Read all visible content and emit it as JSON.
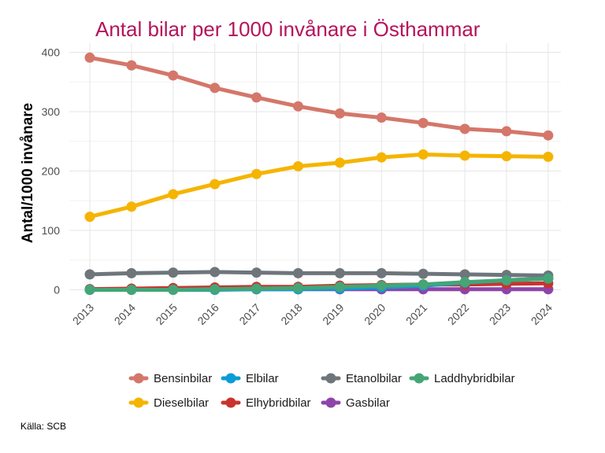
{
  "chart_data": {
    "type": "line",
    "title": "Antal bilar per 1000 invånare i Östhammar",
    "xlabel": "",
    "ylabel": "Antal/1000 invånare",
    "caption": "Källa: SCB",
    "x": [
      "2013",
      "2014",
      "2015",
      "2016",
      "2017",
      "2018",
      "2019",
      "2020",
      "2021",
      "2022",
      "2023",
      "2024"
    ],
    "ylim": [
      -15,
      415
    ],
    "yticks": [
      0,
      100,
      200,
      300,
      400
    ],
    "grid": true,
    "legend_position": "bottom",
    "series": [
      {
        "name": "Bensinbilar",
        "color": "#d4776a",
        "values": [
          391,
          378,
          361,
          340,
          324,
          309,
          297,
          290,
          281,
          271,
          267,
          260
        ]
      },
      {
        "name": "Dieselbilar",
        "color": "#f5b400",
        "values": [
          123,
          140,
          161,
          178,
          195,
          208,
          214,
          223,
          228,
          226,
          225,
          224
        ]
      },
      {
        "name": "Elbilar",
        "color": "#0b9bd7",
        "values": [
          0,
          0,
          0,
          0,
          1,
          1,
          2,
          4,
          7,
          12,
          16,
          19
        ]
      },
      {
        "name": "Elhybridbilar",
        "color": "#c8342d",
        "values": [
          1,
          2,
          3,
          4,
          5,
          5,
          7,
          8,
          9,
          9,
          10,
          11
        ]
      },
      {
        "name": "Etanolbilar",
        "color": "#6e757b",
        "values": [
          26,
          28,
          29,
          30,
          29,
          28,
          28,
          28,
          27,
          26,
          25,
          24
        ]
      },
      {
        "name": "Gasbilar",
        "color": "#8e44a8",
        "values": [
          1,
          1,
          1,
          1,
          1,
          1,
          1,
          1,
          1,
          1,
          1,
          1
        ]
      },
      {
        "name": "Laddhybridbilar",
        "color": "#45a577",
        "values": [
          0,
          0,
          0,
          1,
          2,
          3,
          5,
          7,
          9,
          13,
          16,
          19
        ]
      }
    ]
  }
}
